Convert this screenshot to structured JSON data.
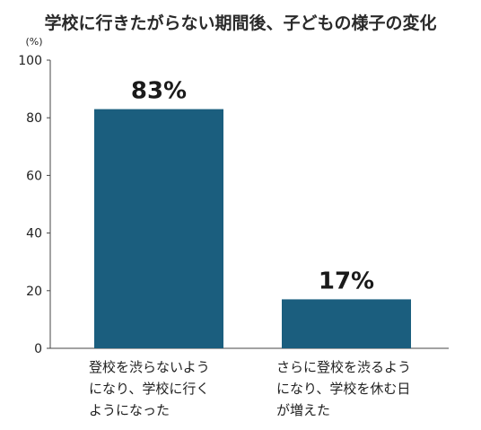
{
  "chart_data": {
    "type": "bar",
    "title": "学校に行きたがらない期間後、子どもの様子の変化",
    "ylabel": "(%)",
    "ylim": [
      0,
      100
    ],
    "yticks": [
      0,
      20,
      40,
      60,
      80,
      100
    ],
    "grid": false,
    "bar_color": "#1b5e7e",
    "categories": [
      [
        "登校を渋らないよう",
        "になり、学校に行く",
        "ようになった"
      ],
      [
        "さらに登校を渋るよう",
        "になり、学校を休む日",
        "が増えた"
      ]
    ],
    "values": [
      83,
      17
    ],
    "value_labels": [
      "83%",
      "17%"
    ]
  }
}
